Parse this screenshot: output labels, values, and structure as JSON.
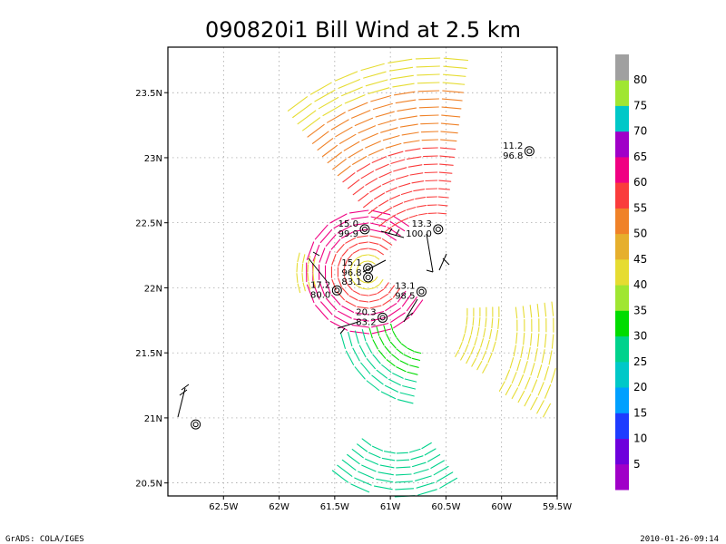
{
  "title": "090820i1 Bill Wind at 2.5 km",
  "footer_left": "GrADS: COLA/IGES",
  "footer_right": "2010-01-26-09:14",
  "map": {
    "lon_range": [
      -62.75,
      -59.5
    ],
    "lat_range": [
      20.4,
      23.85
    ],
    "lon_ticks": [
      {
        "v": -62.5,
        "label": "62.5W"
      },
      {
        "v": -62,
        "label": "62W"
      },
      {
        "v": -61.5,
        "label": "61.5W"
      },
      {
        "v": -61,
        "label": "61W"
      },
      {
        "v": -60.5,
        "label": "60.5W"
      },
      {
        "v": -60,
        "label": "60W"
      },
      {
        "v": -59.5,
        "label": "59.5W"
      }
    ],
    "lat_ticks": [
      {
        "v": 20.5,
        "label": "20.5N"
      },
      {
        "v": 21,
        "label": "21N"
      },
      {
        "v": 21.5,
        "label": "21.5N"
      },
      {
        "v": 22,
        "label": "22N"
      },
      {
        "v": 22.5,
        "label": "22.5N"
      },
      {
        "v": 23,
        "label": "23N"
      },
      {
        "v": 23.5,
        "label": "23.5N"
      }
    ],
    "stations": [
      {
        "id": "s1",
        "lon": -59.75,
        "lat": 23.05,
        "top": "11.2",
        "bottom": "96.8"
      },
      {
        "id": "s2",
        "lon": -61.23,
        "lat": 22.45,
        "top": "15.0",
        "bottom": "99.9"
      },
      {
        "id": "s3",
        "lon": -60.57,
        "lat": 22.45,
        "top": "13.3",
        "bottom": "100.0"
      },
      {
        "id": "s4",
        "lon": -61.2,
        "lat": 22.15,
        "top": "15.1",
        "bottom": "96.8"
      },
      {
        "id": "s5",
        "lon": -61.2,
        "lat": 22.08,
        "top": "",
        "bottom": "83.1"
      },
      {
        "id": "s6",
        "lon": -61.48,
        "lat": 21.98,
        "top": "17.2",
        "bottom": "80.0"
      },
      {
        "id": "s7",
        "lon": -60.72,
        "lat": 21.97,
        "top": "13.1",
        "bottom": "98.5"
      },
      {
        "id": "s8",
        "lon": -61.07,
        "lat": 21.77,
        "top": "20.3",
        "bottom": "83.2"
      },
      {
        "id": "s9",
        "lon": -62.75,
        "lat": 20.95,
        "top": "",
        "bottom": ""
      }
    ]
  },
  "colorbar": {
    "labels": [
      {
        "pos": 1,
        "text": "5"
      },
      {
        "pos": 2,
        "text": "10"
      },
      {
        "pos": 3,
        "text": "15"
      },
      {
        "pos": 4,
        "text": "20"
      },
      {
        "pos": 5,
        "text": "25"
      },
      {
        "pos": 6,
        "text": "30"
      },
      {
        "pos": 7,
        "text": "35"
      },
      {
        "pos": 8,
        "text": "40"
      },
      {
        "pos": 9,
        "text": "45"
      },
      {
        "pos": 10,
        "text": "50"
      },
      {
        "pos": 11,
        "text": "55"
      },
      {
        "pos": 12,
        "text": "60"
      },
      {
        "pos": 13,
        "text": "65"
      },
      {
        "pos": 14,
        "text": "70"
      },
      {
        "pos": 15,
        "text": "75"
      },
      {
        "pos": 16,
        "text": "80"
      }
    ],
    "colors": [
      "#a000c8",
      "#6e00dc",
      "#1e3cff",
      "#00a0ff",
      "#00c8c8",
      "#00d28c",
      "#00dc00",
      "#a0e632",
      "#e6dc32",
      "#e6af2d",
      "#f08228",
      "#fa3c3c",
      "#f00082",
      "#a000c8",
      "#00c8c8",
      "#a0e632",
      "#a0a0a0"
    ]
  }
}
